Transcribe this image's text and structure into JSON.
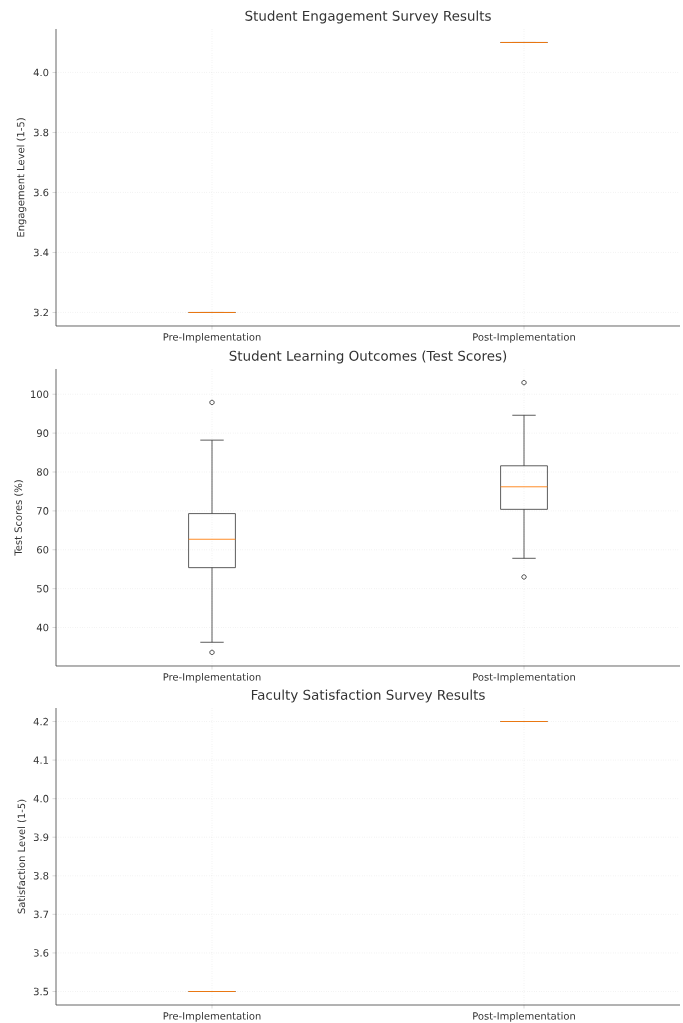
{
  "chart_data": [
    {
      "type": "box",
      "title": "Student Engagement Survey Results",
      "ylabel": "Engagement Level (1-5)",
      "categories": [
        "Pre-Implementation",
        "Post-Implementation"
      ],
      "boxes": [
        {
          "low": 3.2,
          "q1": 3.2,
          "median": 3.2,
          "q3": 3.2,
          "high": 3.2
        },
        {
          "low": 4.1,
          "q1": 4.1,
          "median": 4.1,
          "q3": 4.1,
          "high": 4.1
        }
      ],
      "ylim": [
        3.155,
        4.145
      ],
      "yticks": [
        3.2,
        3.4,
        3.6,
        3.8,
        {
          "value": 4.0,
          "label": "4.0"
        }
      ],
      "grid": true
    },
    {
      "type": "box",
      "title": "Student Learning Outcomes (Test Scores)",
      "ylabel": "Test Scores (%)",
      "categories": [
        "Pre-Implementation",
        "Post-Implementation"
      ],
      "boxes": [
        {
          "low": 36.2,
          "q1": 55.4,
          "median": 62.7,
          "q3": 69.3,
          "high": 88.2,
          "outliers": [
            97.9,
            33.6
          ]
        },
        {
          "low": 57.8,
          "q1": 70.4,
          "median": 76.2,
          "q3": 81.6,
          "high": 94.6,
          "outliers": [
            103.0,
            53.0
          ]
        }
      ],
      "ylim": [
        30.1,
        106.5
      ],
      "yticks": [
        40,
        50,
        60,
        70,
        80,
        90,
        100
      ],
      "grid": true
    },
    {
      "type": "box",
      "title": "Faculty Satisfaction Survey Results",
      "ylabel": "Satisfaction Level (1-5)",
      "categories": [
        "Pre-Implementation",
        "Post-Implementation"
      ],
      "boxes": [
        {
          "low": 3.5,
          "q1": 3.5,
          "median": 3.5,
          "q3": 3.5,
          "high": 3.5
        },
        {
          "low": 4.2,
          "q1": 4.2,
          "median": 4.2,
          "q3": 4.2,
          "high": 4.2
        }
      ],
      "ylim": [
        3.465,
        4.235
      ],
      "yticks": [
        3.5,
        3.6,
        3.7,
        3.8,
        3.9,
        {
          "value": 4.0,
          "label": "4.0"
        },
        4.1,
        4.2
      ],
      "grid": true
    }
  ]
}
